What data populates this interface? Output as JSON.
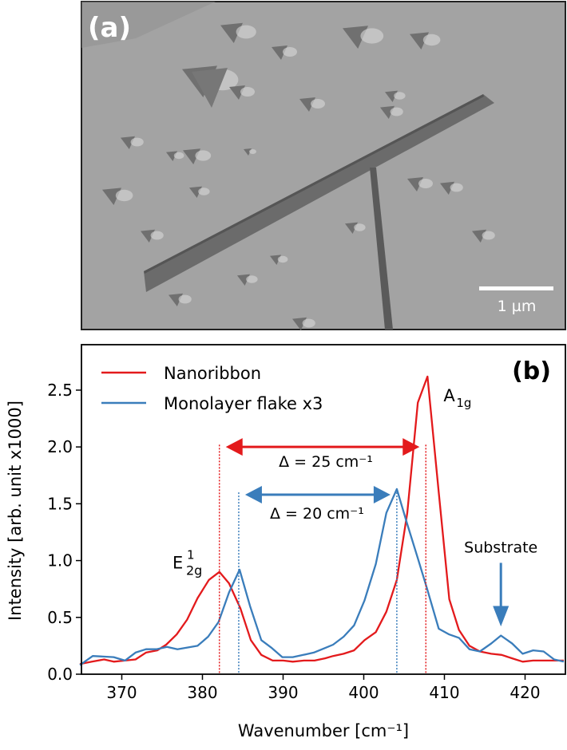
{
  "panel_a": {
    "label": "(a)",
    "scale_bar_label": "1 µm"
  },
  "chart_data": {
    "type": "line",
    "panel_label": "(b)",
    "xlabel": "Wavenumber [cm⁻¹]",
    "ylabel": "Intensity [arb. unit x1000]",
    "xlim": [
      365,
      425
    ],
    "ylim": [
      0,
      2.9
    ],
    "xticks": [
      370,
      380,
      390,
      400,
      410,
      420
    ],
    "yticks": [
      "0.0",
      "0.5",
      "1.0",
      "1.5",
      "2.0",
      "2.5"
    ],
    "grid": false,
    "legend_placement": "top-left",
    "series": [
      {
        "name": "Nanoribbon",
        "color": "#e31a1c",
        "x": [
          364.8,
          366.3,
          367.8,
          369.0,
          370.4,
          371.7,
          373.0,
          374.4,
          375.5,
          376.8,
          378.1,
          379.4,
          380.8,
          382.1,
          383.3,
          384.7,
          386.0,
          387.3,
          388.7,
          390.0,
          391.2,
          392.6,
          393.9,
          395.2,
          396.2,
          397.5,
          398.8,
          400.1,
          401.5,
          402.8,
          404.1,
          405.4,
          406.7,
          407.9,
          409.3,
          410.6,
          411.8,
          413.1,
          414.4,
          415.8,
          417.1,
          418.4,
          419.7,
          421.0,
          422.3,
          424.8
        ],
        "y": [
          0.09,
          0.11,
          0.13,
          0.11,
          0.12,
          0.13,
          0.19,
          0.21,
          0.26,
          0.35,
          0.48,
          0.67,
          0.83,
          0.9,
          0.8,
          0.58,
          0.3,
          0.17,
          0.12,
          0.12,
          0.11,
          0.12,
          0.12,
          0.14,
          0.16,
          0.18,
          0.21,
          0.3,
          0.37,
          0.55,
          0.83,
          1.42,
          2.39,
          2.62,
          1.6,
          0.66,
          0.39,
          0.25,
          0.2,
          0.18,
          0.17,
          0.14,
          0.11,
          0.12,
          0.12,
          0.12
        ]
      },
      {
        "name": "Monolayer flake x3",
        "color": "#3a7dbb",
        "x": [
          364.8,
          366.4,
          369.0,
          370.4,
          371.7,
          373.0,
          374.3,
          375.6,
          376.9,
          379.4,
          380.7,
          382.0,
          383.3,
          384.6,
          385.9,
          387.3,
          388.6,
          389.9,
          391.2,
          392.5,
          393.8,
          395.2,
          396.2,
          397.5,
          398.8,
          400.1,
          401.5,
          402.8,
          404.1,
          405.4,
          406.7,
          407.9,
          409.3,
          410.6,
          411.8,
          413.1,
          414.4,
          415.8,
          417.0,
          418.4,
          419.7,
          421.0,
          422.3,
          423.6,
          424.8
        ],
        "y": [
          0.08,
          0.16,
          0.15,
          0.12,
          0.19,
          0.22,
          0.22,
          0.24,
          0.22,
          0.25,
          0.33,
          0.46,
          0.72,
          0.92,
          0.6,
          0.3,
          0.23,
          0.15,
          0.15,
          0.17,
          0.19,
          0.23,
          0.26,
          0.33,
          0.43,
          0.65,
          0.97,
          1.42,
          1.63,
          1.32,
          1.02,
          0.74,
          0.4,
          0.35,
          0.32,
          0.22,
          0.2,
          0.27,
          0.34,
          0.27,
          0.18,
          0.21,
          0.2,
          0.13,
          0.11
        ]
      }
    ],
    "annotations": {
      "e2g_label": "E",
      "e2g_sup": "1",
      "e2g_sub": "2g",
      "a1g_label": "A",
      "a1g_sub": "1g",
      "delta_red": "Δ = 25 cm⁻¹",
      "delta_blue": "Δ = 20 cm⁻¹",
      "substrate": "Substrate",
      "red_peaks": [
        382.1,
        407.7
      ],
      "blue_peaks": [
        384.5,
        404.1
      ],
      "red_arrow_y": 2.0,
      "blue_arrow_y": 1.58,
      "substrate_x": 417.0
    }
  }
}
